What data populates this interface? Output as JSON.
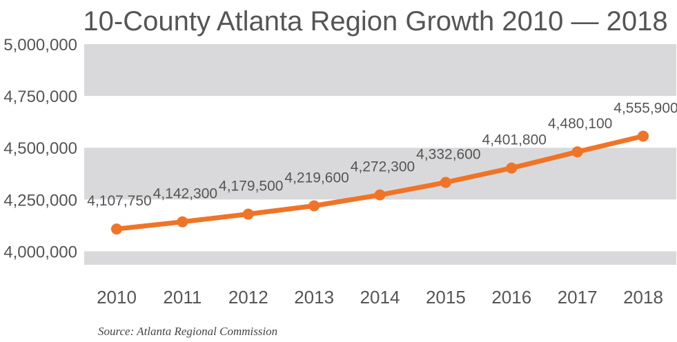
{
  "chart_data": {
    "type": "line",
    "title": "10-County Atlanta Region Growth 2010 — 2018",
    "source": "Source: Atlanta Regional Commission",
    "x": [
      "2010",
      "2011",
      "2012",
      "2013",
      "2014",
      "2015",
      "2016",
      "2017",
      "2018"
    ],
    "series": [
      {
        "values": [
          4107750,
          4142300,
          4179500,
          4219600,
          4272300,
          4332600,
          4401800,
          4480100,
          4555900
        ],
        "data_labels": [
          "4,107,750",
          "4,142,300",
          "4,179,500",
          "4,219,600",
          "4,272,300",
          "4,332,600",
          "4,401,800",
          "4,480,100",
          "4,555,900"
        ]
      }
    ],
    "ylim": [
      3935000,
      5020000
    ],
    "yticks": [
      4000000,
      4250000,
      4500000,
      4750000,
      5000000
    ],
    "ytick_labels": [
      "4,000,000",
      "4,250,000",
      "4,500,000",
      "4,750,000",
      "5,000,000"
    ],
    "grid": "alternating horizontal bands",
    "legend": "none",
    "colors": {
      "line": "#F07427",
      "band": "#D9D9DB",
      "text": "#555555"
    }
  }
}
